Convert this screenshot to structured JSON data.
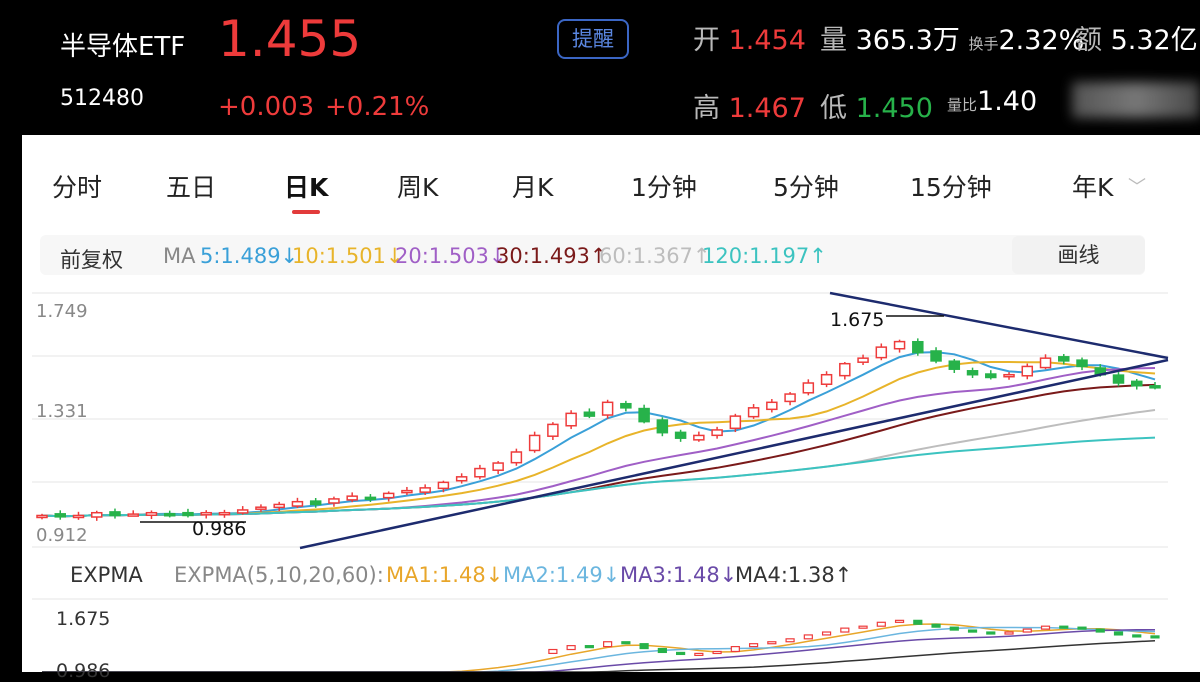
{
  "header": {
    "name": "半导体ETF",
    "code": "512480",
    "price": "1.455",
    "change": "+0.003",
    "change_pct": "+0.21%",
    "alert_button": "提醒",
    "open_label": "开",
    "open_value": "1.454",
    "volume_label": "量",
    "volume_value": "365.3万",
    "turnover_label": "换手",
    "turnover_value": "2.32%",
    "amount_label": "额",
    "amount_value": "5.32亿",
    "high_label": "高",
    "high_value": "1.467",
    "low_label": "低",
    "low_value": "1.450",
    "vol_ratio_label": "量比",
    "vol_ratio_value": "1.40"
  },
  "tabs": [
    "分时",
    "五日",
    "日K",
    "周K",
    "月K",
    "1分钟",
    "5分钟",
    "15分钟",
    "年K"
  ],
  "active_tab": "日K",
  "adjust_label": "前复权",
  "draw_button": "画线",
  "ma_bar": {
    "prefix": "MA",
    "items": [
      {
        "text": "5:1.489↓",
        "color": "#3aa0d8"
      },
      {
        "text": "10:1.501↓",
        "color": "#e8b42a"
      },
      {
        "text": "20:1.503↓",
        "color": "#a05fc6"
      },
      {
        "text": "30:1.493↑",
        "color": "#7a1a1a"
      },
      {
        "text": "60:1.367↑",
        "color": "#bdbdbd"
      },
      {
        "text": "120:1.197↑",
        "color": "#3cc3c0"
      }
    ]
  },
  "main_axis": {
    "top": "1.749",
    "mid": "1.331",
    "bottom": "0.912"
  },
  "annotations": {
    "high": "1.675",
    "low": "0.986"
  },
  "expma": {
    "label": "EXPMA",
    "params": "EXPMA(5,10,20,60):",
    "items": [
      {
        "text": "MA1:1.48↓",
        "color": "#e8a62a"
      },
      {
        "text": "MA2:1.49↓",
        "color": "#6bb6df"
      },
      {
        "text": "MA3:1.48↓",
        "color": "#6a4aa8"
      },
      {
        "text": "MA4:1.38↑",
        "color": "#333333"
      }
    ],
    "axis_top": "1.675",
    "axis_bottom": "0.986"
  },
  "colors": {
    "up": "#ee3b3b",
    "down": "#27b24a",
    "trendline": "#1d2b6e"
  },
  "chart_data": {
    "type": "candlestick",
    "ylim": [
      0.912,
      1.749
    ],
    "marked_high": 1.675,
    "marked_low": 0.986,
    "close_series_approx": [
      0.99,
      0.985,
      0.99,
      1.0,
      0.99,
      0.995,
      1.0,
      0.995,
      0.99,
      1.0,
      1.0,
      1.01,
      1.02,
      1.03,
      1.04,
      1.03,
      1.05,
      1.06,
      1.05,
      1.07,
      1.08,
      1.09,
      1.11,
      1.13,
      1.16,
      1.18,
      1.22,
      1.28,
      1.32,
      1.36,
      1.35,
      1.4,
      1.38,
      1.33,
      1.29,
      1.27,
      1.28,
      1.3,
      1.35,
      1.38,
      1.4,
      1.43,
      1.47,
      1.5,
      1.54,
      1.56,
      1.6,
      1.62,
      1.58,
      1.55,
      1.52,
      1.5,
      1.49,
      1.5,
      1.53,
      1.56,
      1.55,
      1.53,
      1.5,
      1.47,
      1.46,
      1.455
    ]
  }
}
